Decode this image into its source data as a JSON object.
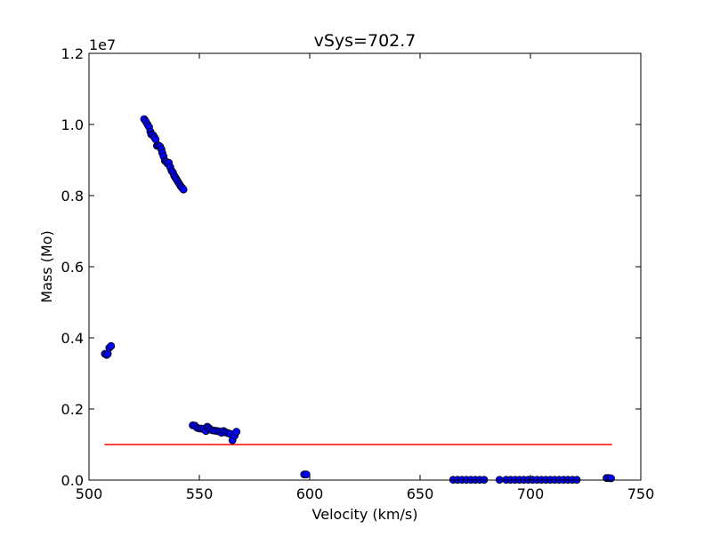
{
  "chart_data": {
    "type": "scatter",
    "title": "vSys=702.7",
    "xlabel": "Velocity (km/s)",
    "ylabel": "Mass (Mo)",
    "xlim": [
      500,
      750
    ],
    "ylim": [
      0,
      12000000
    ],
    "offset_label": "1e7",
    "x_ticks": [
      500,
      550,
      600,
      650,
      700,
      750
    ],
    "x_tick_labels": [
      "500",
      "550",
      "600",
      "650",
      "700",
      "750"
    ],
    "y_ticks": [
      0,
      2000000,
      4000000,
      6000000,
      8000000,
      10000000,
      12000000
    ],
    "y_tick_labels": [
      "0.0",
      "0.2",
      "0.4",
      "0.6",
      "0.8",
      "1.0",
      "1.2"
    ],
    "grid": false,
    "point_color": "#0000ff",
    "line_color": "#ff0000",
    "reference_line": {
      "x": [
        507,
        737
      ],
      "y": [
        1000000,
        1000000
      ]
    },
    "points": [
      [
        507.2,
        3550000
      ],
      [
        508.0,
        3520000
      ],
      [
        508.5,
        3550000
      ],
      [
        509.2,
        3720000
      ],
      [
        510.0,
        3770000
      ],
      [
        525.0,
        10150000
      ],
      [
        525.8,
        10080000
      ],
      [
        526.5,
        10000000
      ],
      [
        527.2,
        9930000
      ],
      [
        527.8,
        9800000
      ],
      [
        528.2,
        9720000
      ],
      [
        529.0,
        9700000
      ],
      [
        529.6,
        9640000
      ],
      [
        530.2,
        9580000
      ],
      [
        530.8,
        9400000
      ],
      [
        531.5,
        9410000
      ],
      [
        532.2,
        9380000
      ],
      [
        532.8,
        9300000
      ],
      [
        533.2,
        9200000
      ],
      [
        533.8,
        9100000
      ],
      [
        534.4,
        8980000
      ],
      [
        535.0,
        8950000
      ],
      [
        535.6,
        8900000
      ],
      [
        536.2,
        8920000
      ],
      [
        536.8,
        8800000
      ],
      [
        537.4,
        8700000
      ],
      [
        538.0,
        8650000
      ],
      [
        538.6,
        8560000
      ],
      [
        539.2,
        8500000
      ],
      [
        539.8,
        8440000
      ],
      [
        540.4,
        8380000
      ],
      [
        541.0,
        8320000
      ],
      [
        541.6,
        8260000
      ],
      [
        542.2,
        8220000
      ],
      [
        542.8,
        8170000
      ],
      [
        547.0,
        1540000
      ],
      [
        548.0,
        1530000
      ],
      [
        549.0,
        1470000
      ],
      [
        550.0,
        1450000
      ],
      [
        551.0,
        1450000
      ],
      [
        552.0,
        1430000
      ],
      [
        553.0,
        1380000
      ],
      [
        553.6,
        1500000
      ],
      [
        554.2,
        1470000
      ],
      [
        555.0,
        1420000
      ],
      [
        556.0,
        1400000
      ],
      [
        557.0,
        1390000
      ],
      [
        558.0,
        1380000
      ],
      [
        559.0,
        1370000
      ],
      [
        560.0,
        1330000
      ],
      [
        561.0,
        1380000
      ],
      [
        562.0,
        1340000
      ],
      [
        563.0,
        1320000
      ],
      [
        564.0,
        1300000
      ],
      [
        565.0,
        1120000
      ],
      [
        566.0,
        1250000
      ],
      [
        566.8,
        1360000
      ],
      [
        597.5,
        160000
      ],
      [
        598.5,
        160000
      ],
      [
        665.0,
        10000
      ],
      [
        667.0,
        10000
      ],
      [
        669.0,
        10000
      ],
      [
        671.0,
        10000
      ],
      [
        673.0,
        10000
      ],
      [
        675.0,
        10000
      ],
      [
        677.0,
        10000
      ],
      [
        679.0,
        10000
      ],
      [
        686.0,
        10000
      ],
      [
        689.0,
        10000
      ],
      [
        691.0,
        10000
      ],
      [
        693.0,
        10000
      ],
      [
        695.0,
        10000
      ],
      [
        697.0,
        10000
      ],
      [
        699.0,
        10000
      ],
      [
        701.0,
        10000
      ],
      [
        703.0,
        10000
      ],
      [
        705.0,
        10000
      ],
      [
        707.0,
        10000
      ],
      [
        709.0,
        10000
      ],
      [
        711.0,
        10000
      ],
      [
        713.0,
        10000
      ],
      [
        715.0,
        10000
      ],
      [
        717.0,
        10000
      ],
      [
        719.0,
        10000
      ],
      [
        721.0,
        10000
      ],
      [
        734.5,
        60000
      ],
      [
        735.5,
        60000
      ],
      [
        736.5,
        50000
      ]
    ]
  }
}
